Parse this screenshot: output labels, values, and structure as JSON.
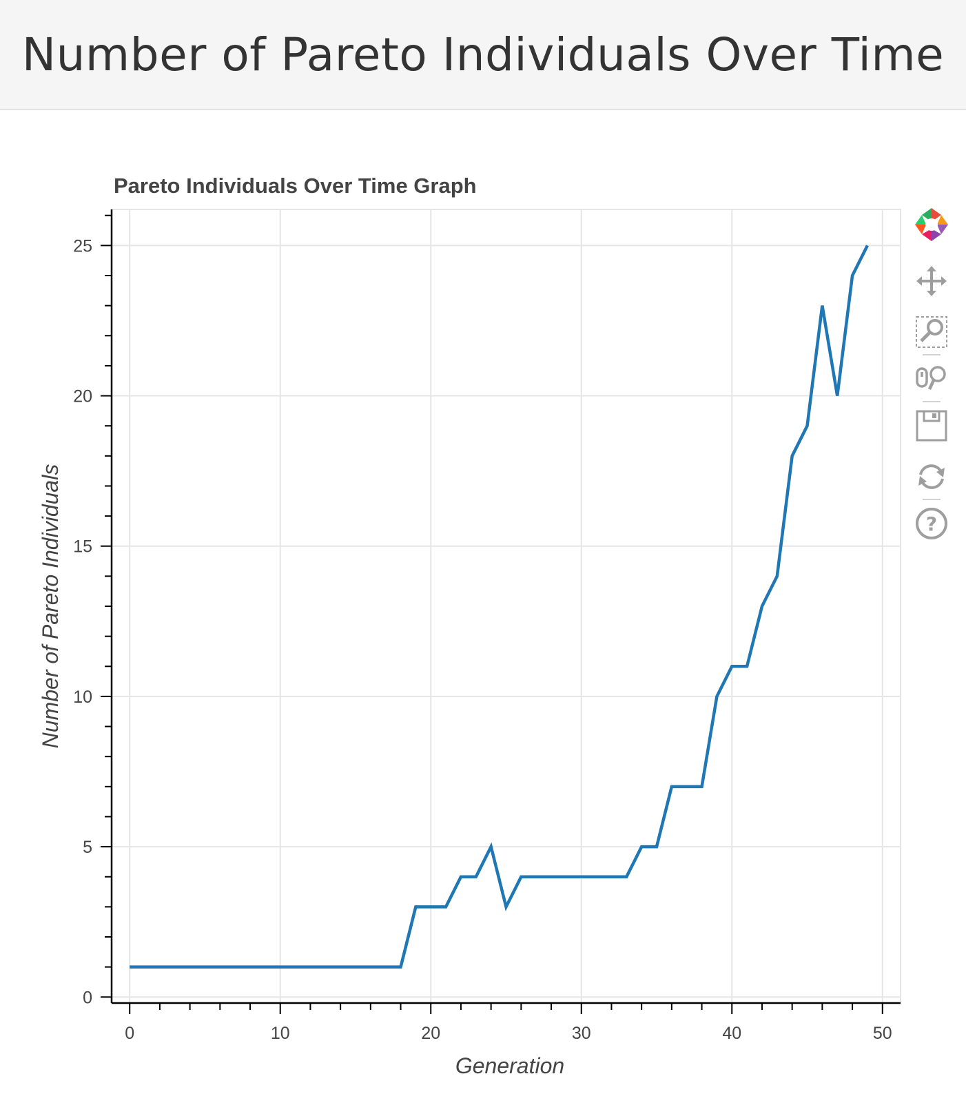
{
  "page": {
    "title": "Number of Pareto Individuals Over Time"
  },
  "toolbar": {
    "items": [
      "bokeh-logo-icon",
      "pan-icon",
      "box-zoom-icon",
      "wheel-zoom-icon",
      "save-icon",
      "reset-icon",
      "help-icon"
    ]
  },
  "chart_data": {
    "type": "line",
    "title": "Pareto Individuals Over Time Graph",
    "xlabel": "Generation",
    "ylabel": "Number of Pareto Individuals",
    "xlim": [
      -1.2,
      51.2
    ],
    "ylim": [
      -0.2,
      26.2
    ],
    "xticks": [
      0,
      10,
      20,
      30,
      40,
      50
    ],
    "yticks": [
      0,
      5,
      10,
      15,
      20,
      25
    ],
    "grid": true,
    "line_color": "#1f77b4",
    "x": [
      0,
      1,
      2,
      3,
      4,
      5,
      6,
      7,
      8,
      9,
      10,
      11,
      12,
      13,
      14,
      15,
      16,
      17,
      18,
      19,
      20,
      21,
      22,
      23,
      24,
      25,
      26,
      27,
      28,
      29,
      30,
      31,
      32,
      33,
      34,
      35,
      36,
      37,
      38,
      39,
      40,
      41,
      42,
      43,
      44,
      45,
      46,
      47,
      48,
      49
    ],
    "y": [
      1,
      1,
      1,
      1,
      1,
      1,
      1,
      1,
      1,
      1,
      1,
      1,
      1,
      1,
      1,
      1,
      1,
      1,
      1,
      3,
      3,
      3,
      4,
      4,
      5,
      3,
      4,
      4,
      4,
      4,
      4,
      4,
      4,
      4,
      5,
      5,
      7,
      7,
      7,
      10,
      11,
      11,
      13,
      14,
      18,
      19,
      23,
      20,
      24,
      25
    ]
  }
}
